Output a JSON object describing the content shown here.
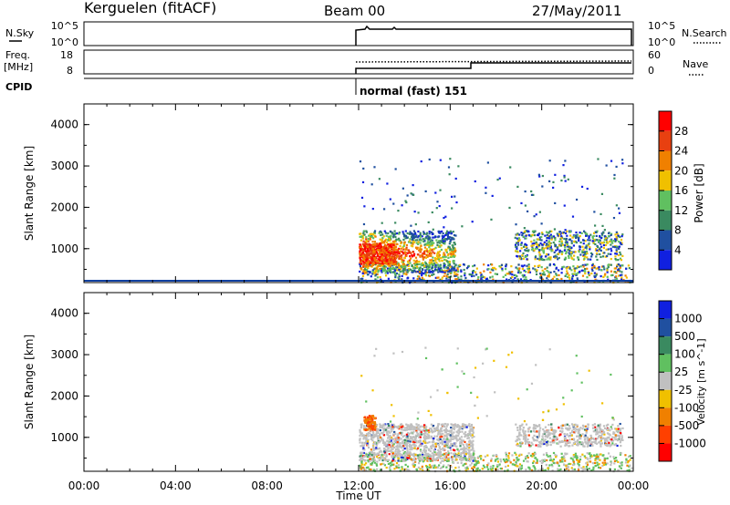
{
  "header": {
    "station": "Kerguelen (fitACF)",
    "beam": "Beam 00",
    "date": "27/May/2011"
  },
  "strip": {
    "nsky_label": "N.Sky",
    "nsky_ticks": [
      "10^5",
      "10^0"
    ],
    "nsearch_label": "N.Search",
    "freq_label_line1": "Freq.",
    "freq_label_line2": "[MHz]",
    "freq_ticks": [
      "18",
      "8"
    ],
    "nave_label": "Nave",
    "nave_ticks": [
      "60",
      "0"
    ],
    "cpid_label": "CPID",
    "cpid_value": "normal (fast) 151"
  },
  "colors": {
    "power": [
      "#1020e0",
      "#2050a0",
      "#3a8a60",
      "#60c060",
      "#f0c000",
      "#f08000",
      "#e84010",
      "#ff0000"
    ],
    "velocity": [
      "#1020e0",
      "#2050a0",
      "#3a8a60",
      "#60c060",
      "#c0c0c0",
      "#f0c000",
      "#f08000",
      "#ff4000",
      "#ff0000"
    ]
  },
  "chart_data": [
    {
      "type": "heatmap",
      "panel": "power",
      "ylabel": "Slant Range [km]",
      "ylim": [
        180,
        4500
      ],
      "yticks": [
        "4000",
        "3000",
        "2000",
        "1000"
      ],
      "colorbar_label": "Power [dB]",
      "colorbar_ticks": [
        "28",
        "24",
        "20",
        "16",
        "12",
        "8",
        "4"
      ],
      "data_start_hour": 12.0,
      "regions": [
        {
          "t0": 12.0,
          "t1": 13.5,
          "r0": 500,
          "r1": 1400,
          "level": "high"
        },
        {
          "t0": 13.5,
          "t1": 15.8,
          "r0": 600,
          "r1": 1300,
          "level": "mid"
        },
        {
          "t0": 15.8,
          "t1": 17.0,
          "r0": 300,
          "r1": 800,
          "level": "low"
        },
        {
          "t0": 18.8,
          "t1": 23.5,
          "r0": 750,
          "r1": 1500,
          "level": "mid"
        }
      ]
    },
    {
      "type": "heatmap",
      "panel": "velocity",
      "ylabel": "Slant Range [km]",
      "ylim": [
        180,
        4500
      ],
      "yticks": [
        "4000",
        "3000",
        "2000",
        "1000"
      ],
      "colorbar_label": "Velocity [m s^-1]",
      "colorbar_ticks": [
        "1000",
        "500",
        "100",
        "25",
        "-25",
        "-100",
        "-500",
        "-1000"
      ],
      "xlabel": "Time UT",
      "xticks": [
        "00:00",
        "04:00",
        "08:00",
        "12:00",
        "16:00",
        "20:00",
        "00:00"
      ]
    }
  ]
}
